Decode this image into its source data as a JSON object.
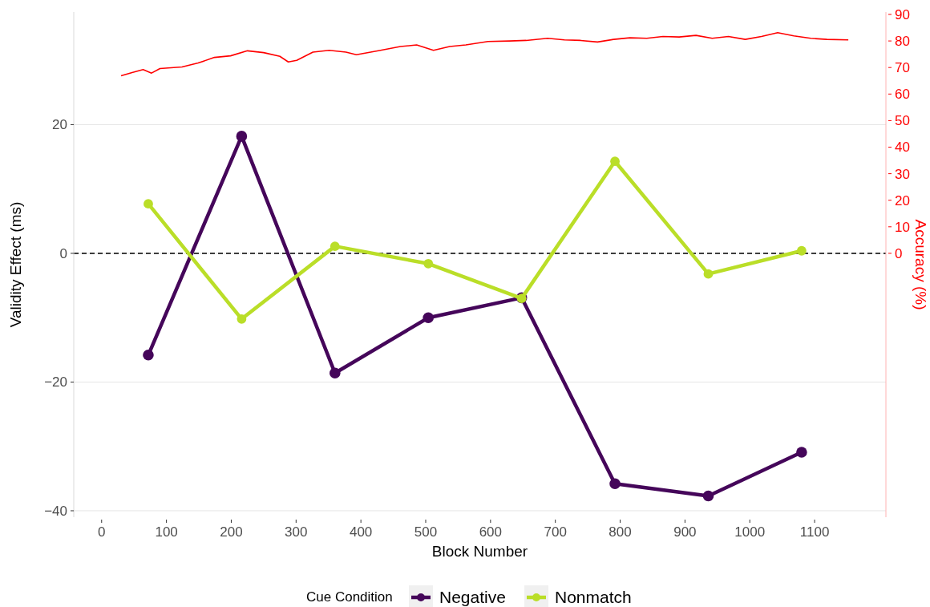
{
  "chart_data": {
    "type": "line",
    "xlabel": "Block Number",
    "ylabel": "Validity Effect (ms)",
    "y2label": "Accuracy (%)",
    "legend_title": "Cue Condition",
    "xlim": [
      -43,
      1210
    ],
    "xticks": [
      0,
      100,
      200,
      300,
      400,
      500,
      600,
      700,
      800,
      900,
      1000,
      1100
    ],
    "ylim": [
      -41,
      37.5
    ],
    "yticks": [
      -40,
      -20,
      0,
      20
    ],
    "y2lim": [
      -99.4,
      90.9
    ],
    "y2ticks": [
      0,
      10,
      20,
      30,
      40,
      50,
      60,
      70,
      80,
      90
    ],
    "grid": "y",
    "legend": "bottom",
    "marker": "circle",
    "ref_lines": [
      {
        "axis": "y",
        "value": 0,
        "color": "#000000",
        "line_style": "dashed"
      }
    ],
    "series": [
      {
        "name": "Negative",
        "color": "#45065a",
        "x": [
          72,
          216,
          360,
          504,
          648,
          792,
          936,
          1080
        ],
        "values": [
          -15.8,
          18.2,
          -18.6,
          -10.0,
          -6.9,
          -35.8,
          -37.7,
          -30.9
        ]
      },
      {
        "name": "Nonmatch",
        "color": "#bade28",
        "x": [
          72,
          216,
          360,
          504,
          648,
          792,
          936,
          1080
        ],
        "values": [
          7.7,
          -10.2,
          1.1,
          -1.6,
          -7.0,
          14.3,
          -3.2,
          0.4
        ]
      },
      {
        "color": "#ff0000",
        "axis": "y2",
        "marker": "none",
        "x": [
          30,
          47,
          64,
          77,
          90,
          124,
          149,
          174,
          199,
          225,
          250,
          275,
          288,
          301,
          326,
          351,
          377,
          393,
          427,
          461,
          486,
          512,
          537,
          562,
          596,
          629,
          655,
          688,
          714,
          739,
          765,
          790,
          815,
          841,
          866,
          891,
          917,
          942,
          967,
          993,
          1018,
          1043,
          1068,
          1094,
          1119,
          1152
        ],
        "values": [
          66.9,
          68.1,
          69.2,
          67.9,
          69.6,
          70.2,
          71.7,
          73.8,
          74.4,
          76.3,
          75.6,
          74.2,
          72.1,
          72.7,
          75.8,
          76.5,
          75.8,
          74.8,
          76.3,
          77.9,
          78.5,
          76.5,
          77.9,
          78.5,
          79.8,
          80.0,
          80.2,
          81.0,
          80.4,
          80.2,
          79.6,
          80.6,
          81.2,
          81.0,
          81.7,
          81.5,
          82.1,
          81.0,
          81.7,
          80.6,
          81.7,
          83.1,
          81.9,
          81.0,
          80.6,
          80.4
        ]
      }
    ]
  }
}
